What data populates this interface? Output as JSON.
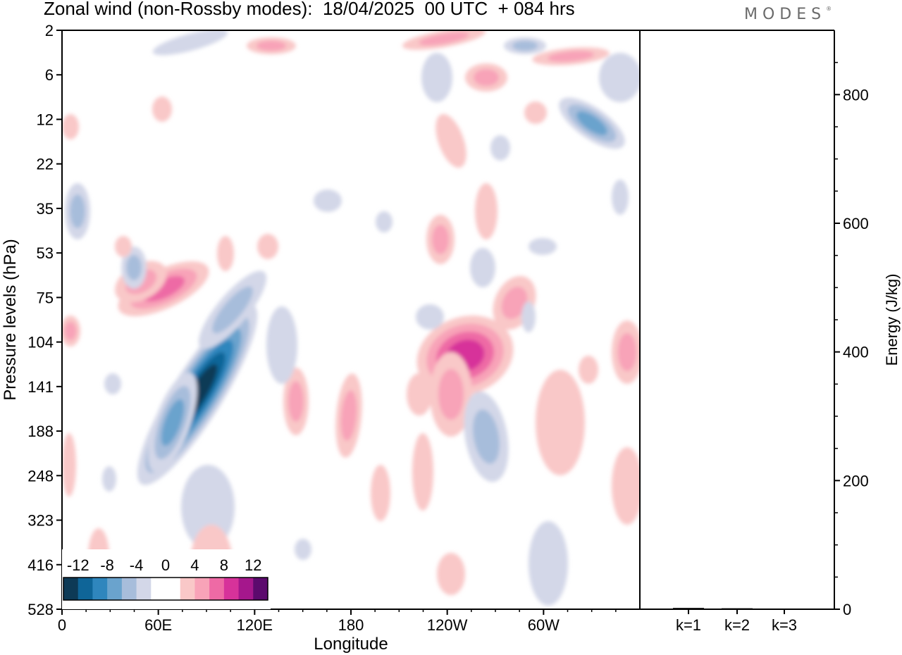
{
  "title": "Zonal wind (non-Rossby modes):  18/04/2025  00 UTC  + 084 hrs",
  "logo_text": "MODES",
  "logo_mark": "®",
  "chart_data": [
    {
      "type": "heatmap",
      "title": "Zonal wind (non-Rossby modes):  18/04/2025  00 UTC  + 084 hrs",
      "xlabel": "Longitude",
      "ylabel": "Pressure levels (hPa)",
      "x_ticks": [
        "0",
        "60E",
        "120E",
        "180",
        "120W",
        "60W"
      ],
      "x_tick_degrees": [
        0,
        60,
        120,
        180,
        240,
        300
      ],
      "xlim": [
        0,
        360
      ],
      "y_ticks": [
        "2",
        "6",
        "12",
        "22",
        "35",
        "53",
        "75",
        "104",
        "141",
        "188",
        "248",
        "323",
        "416",
        "528"
      ],
      "colorbar": {
        "labels": [
          "-12",
          "-8",
          "-4",
          "0",
          "4",
          "8",
          "12"
        ],
        "colors": [
          "#0d3a56",
          "#0f6598",
          "#2f86bd",
          "#6aa3cd",
          "#a7bddb",
          "#d3d7e8",
          "#ffffff",
          "#ffffff",
          "#f9c8c8",
          "#f8a3b8",
          "#ee6aa5",
          "#d7329a",
          "#a5178c",
          "#5c0a6d"
        ]
      },
      "features": [
        {
          "sign": "negative",
          "peak": -14,
          "lon": 93,
          "level": "104-188",
          "desc": "tilted easterly band from 60E to 125E"
        },
        {
          "sign": "positive",
          "peak": 10,
          "lon": 245,
          "level": "104-141",
          "desc": "westerly maximum near 115W"
        },
        {
          "sign": "positive",
          "peak": 6,
          "lon": 58,
          "level": "75",
          "desc": "westerly patch near 60E"
        },
        {
          "sign": "negative",
          "peak": -8,
          "lon": 333,
          "level": "12-22",
          "desc": "easterly patch near 30W"
        },
        {
          "sign": "negative",
          "peak": -4,
          "lon": 297,
          "level": "323-528",
          "desc": "easterly column near 60W"
        },
        {
          "sign": "positive",
          "peak": 4,
          "lon": 325,
          "level": "141-248",
          "desc": "westerly column near 35W"
        }
      ]
    },
    {
      "type": "bar",
      "ylabel": "Energy (J/kg)",
      "ylim": [
        0,
        900
      ],
      "y_ticks": [
        0,
        200,
        400,
        600,
        800
      ],
      "categories": [
        "k=1",
        "k=2",
        "k=3"
      ],
      "values": [
        2,
        1.5,
        1
      ]
    }
  ]
}
